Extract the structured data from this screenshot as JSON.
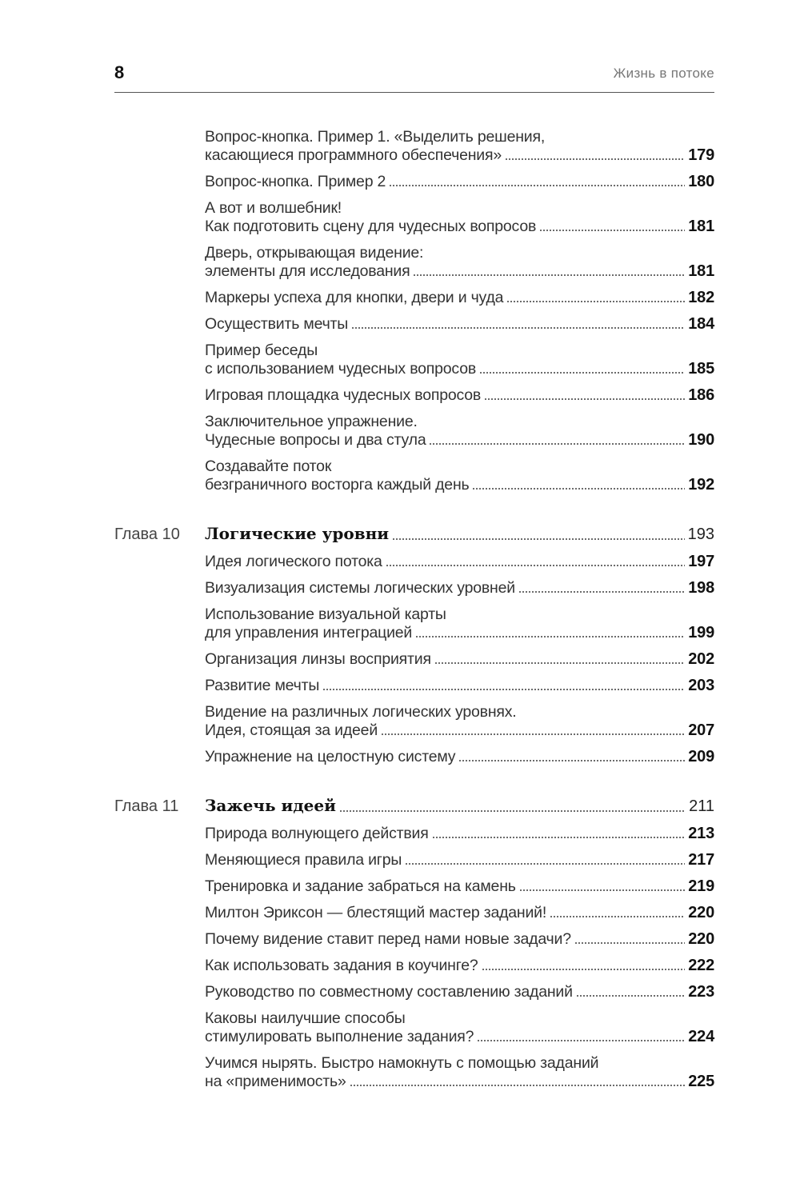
{
  "header": {
    "page_number": "8",
    "running_title": "Жизнь в потоке"
  },
  "sections": [
    {
      "chapter": null,
      "items": [
        {
          "lines": [
            "Вопрос-кнопка. Пример 1. «Выделить решения,",
            "касающиеся программного обеспечения»"
          ],
          "page": "179"
        },
        {
          "lines": [
            "Вопрос-кнопка. Пример 2"
          ],
          "page": "180"
        },
        {
          "lines": [
            "А вот и волшебник!",
            "Как подготовить сцену для чудесных вопросов"
          ],
          "page": "181"
        },
        {
          "lines": [
            "Дверь, открывающая видение:",
            "элементы для исследования"
          ],
          "page": "181"
        },
        {
          "lines": [
            "Маркеры успеха для кнопки, двери и чуда"
          ],
          "page": "182"
        },
        {
          "lines": [
            "Осуществить мечты"
          ],
          "page": "184"
        },
        {
          "lines": [
            "Пример беседы",
            "с использованием чудесных вопросов"
          ],
          "page": "185"
        },
        {
          "lines": [
            "Игровая площадка чудесных вопросов"
          ],
          "page": "186"
        },
        {
          "lines": [
            "Заключительное упражнение.",
            "Чудесные вопросы и два стула"
          ],
          "page": "190"
        },
        {
          "lines": [
            "Создавайте поток",
            "безграничного восторга каждый день"
          ],
          "page": "192"
        }
      ]
    },
    {
      "chapter": {
        "label": "Глава 10",
        "title": "Логические уровни",
        "page": "193"
      },
      "items": [
        {
          "lines": [
            "Идея логического потока"
          ],
          "page": "197"
        },
        {
          "lines": [
            "Визуализация системы логических уровней"
          ],
          "page": "198"
        },
        {
          "lines": [
            "Использование визуальной карты",
            "для управления интеграцией"
          ],
          "page": "199"
        },
        {
          "lines": [
            "Организация линзы восприятия"
          ],
          "page": "202"
        },
        {
          "lines": [
            "Развитие мечты"
          ],
          "page": "203"
        },
        {
          "lines": [
            "Видение на различных логических уровнях.",
            "Идея, стоящая за идеей"
          ],
          "page": "207"
        },
        {
          "lines": [
            "Упражнение на целостную систему"
          ],
          "page": "209"
        }
      ]
    },
    {
      "chapter": {
        "label": "Глава 11",
        "title": "Зажечь идеей",
        "page": "211"
      },
      "items": [
        {
          "lines": [
            "Природа волнующего действия"
          ],
          "page": "213"
        },
        {
          "lines": [
            "Меняющиеся правила игры"
          ],
          "page": "217"
        },
        {
          "lines": [
            "Тренировка и задание забраться на камень"
          ],
          "page": "219"
        },
        {
          "lines": [
            "Милтон Эриксон — блестящий мастер заданий!"
          ],
          "page": "220"
        },
        {
          "lines": [
            "Почему видение ставит перед нами новые задачи?"
          ],
          "page": "220"
        },
        {
          "lines": [
            "Как использовать задания в коучинге?"
          ],
          "page": "222"
        },
        {
          "lines": [
            "Руководство по совместному составлению заданий"
          ],
          "page": "223"
        },
        {
          "lines": [
            "Каковы наилучшие способы",
            "стимулировать выполнение задания?"
          ],
          "page": "224"
        },
        {
          "lines": [
            "Учимся нырять. Быстро намокнуть с помощью заданий",
            "на «применимость»"
          ],
          "page": "225"
        }
      ]
    }
  ]
}
